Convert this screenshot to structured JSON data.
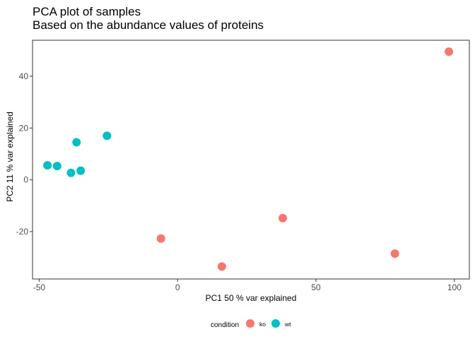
{
  "chart_data": {
    "type": "scatter",
    "title": "PCA plot of samples",
    "subtitle": "Based on the abundance values of proteins",
    "xlabel": "PC1 50 % var explained",
    "ylabel": "PC2 11 % var explained",
    "xlim": [
      -52.4,
      105.4
    ],
    "ylim": [
      -38.3,
      53.9
    ],
    "x_ticks": [
      -50,
      0,
      50,
      100
    ],
    "y_ticks": [
      -20,
      0,
      20,
      40
    ],
    "x_tick_labels": [
      "-50",
      "0",
      "50",
      "100"
    ],
    "y_tick_labels": [
      "-20",
      "0",
      "20",
      "40"
    ],
    "grid": false,
    "legend": {
      "title": "condition",
      "position": "bottom"
    },
    "series": [
      {
        "name": "ko",
        "color": "#F8766D",
        "points": [
          {
            "x": 98,
            "y": 49.5
          },
          {
            "x": 78.5,
            "y": -28.5
          },
          {
            "x": 38,
            "y": -14.8
          },
          {
            "x": 16,
            "y": -33.5
          },
          {
            "x": -6,
            "y": -22.7
          }
        ]
      },
      {
        "name": "wt",
        "color": "#00BFC4",
        "points": [
          {
            "x": -47,
            "y": 5.6
          },
          {
            "x": -43.5,
            "y": 5.3
          },
          {
            "x": -38.5,
            "y": 2.7
          },
          {
            "x": -35,
            "y": 3.5
          },
          {
            "x": -36.5,
            "y": 14.5
          },
          {
            "x": -25.5,
            "y": 17
          }
        ]
      }
    ]
  }
}
